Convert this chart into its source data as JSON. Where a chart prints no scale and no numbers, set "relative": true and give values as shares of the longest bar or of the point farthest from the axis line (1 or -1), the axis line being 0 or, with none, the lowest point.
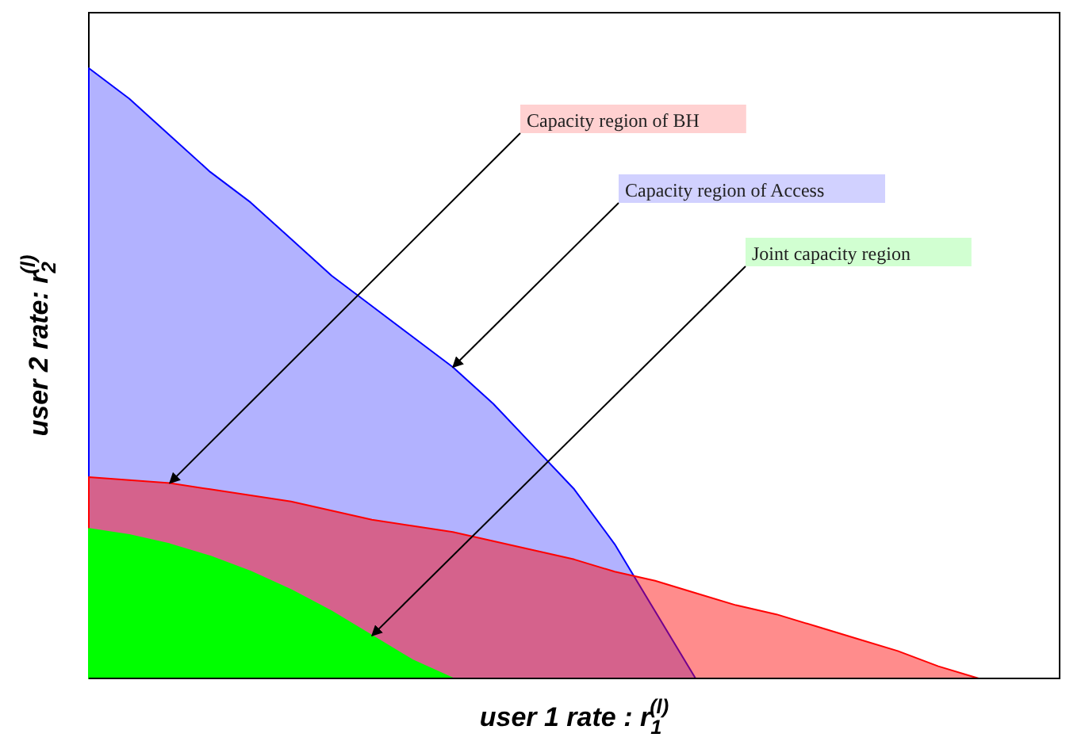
{
  "chart_data": {
    "type": "area",
    "relative": true,
    "xlabel": "user 1 rate : r$_{1}$$^{(l)}$",
    "ylabel": "user 2 rate: r$_{2}$$^{(l)}$",
    "categories": [
      null,
      null,
      null,
      null,
      null,
      null,
      null,
      null,
      null,
      null,
      null,
      null,
      null,
      null,
      null,
      null,
      null,
      null,
      null,
      null,
      null,
      null,
      null,
      null,
      null
    ],
    "series": [
      {
        "color": "#0000ff",
        "values": [
          1,
          0.95,
          0.89,
          0.83,
          0.78,
          0.72,
          0.66,
          0.61,
          0.56,
          0.51,
          0.45,
          0.38,
          0.31,
          0.22,
          0.11,
          0,
          null,
          null,
          null,
          null,
          null,
          null,
          null,
          null,
          null
        ]
      },
      {
        "color": "#ff0000",
        "values": [
          0.33,
          0.325,
          0.32,
          0.31,
          0.3,
          0.29,
          0.275,
          0.26,
          0.25,
          0.24,
          0.225,
          0.21,
          0.195,
          0.175,
          0.16,
          0.14,
          0.12,
          0.105,
          0.085,
          0.065,
          0.045,
          0.02,
          0,
          null,
          null
        ]
      },
      {
        "color": "#00ff00",
        "values": [
          0.245,
          0.235,
          0.22,
          0.2,
          0.175,
          0.145,
          0.11,
          0.07,
          0.03,
          0,
          null,
          null,
          null,
          null,
          null,
          null,
          null,
          null,
          null,
          null,
          null,
          null,
          null,
          null,
          null
        ]
      }
    ],
    "annotations": [
      "Capacity region of BH",
      "Capacity region of Access",
      "Joint capacity region"
    ]
  }
}
